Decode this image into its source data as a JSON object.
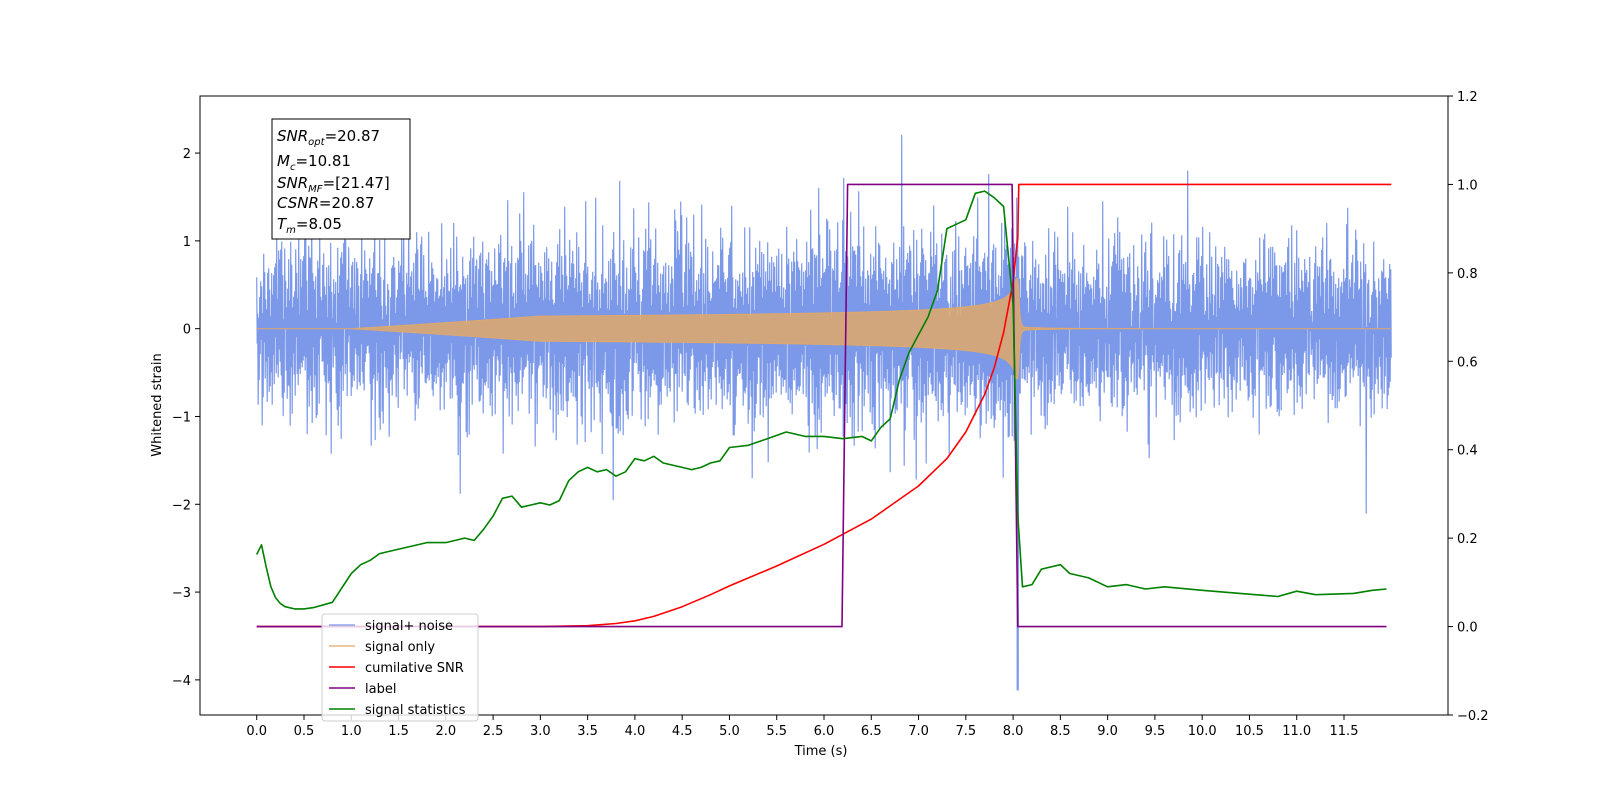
{
  "chart_data": {
    "type": "line",
    "title": "",
    "xlabel": "Time (s)",
    "ylabel": "Whitened strain",
    "y2label": "",
    "xlim": [
      -0.6,
      12.6
    ],
    "ylim": [
      -4.4,
      2.65
    ],
    "y2lim": [
      -0.2,
      1.2
    ],
    "x_ticks": [
      0.0,
      0.5,
      1.0,
      1.5,
      2.0,
      2.5,
      3.0,
      3.5,
      4.0,
      4.5,
      5.0,
      5.5,
      6.0,
      6.5,
      7.0,
      7.5,
      8.0,
      8.5,
      9.0,
      9.5,
      10.0,
      10.5,
      11.0,
      11.5
    ],
    "x_tick_labels": [
      "0.0",
      "0.5",
      "1.0",
      "1.5",
      "2.0",
      "2.5",
      "3.0",
      "3.5",
      "4.0",
      "4.5",
      "5.0",
      "5.5",
      "6.0",
      "6.5",
      "7.0",
      "7.5",
      "8.0",
      "8.5",
      "9.0",
      "9.5",
      "10.0",
      "10.5",
      "11.0",
      "11.5"
    ],
    "y_ticks": [
      2,
      1,
      0,
      -1,
      -2,
      -3,
      -4
    ],
    "y_tick_labels": [
      "2",
      "1",
      "0",
      "−1",
      "−2",
      "−3",
      "−4"
    ],
    "y2_ticks": [
      1.2,
      1.0,
      0.8,
      0.6,
      0.4,
      0.2,
      0.0,
      -0.2
    ],
    "y2_tick_labels": [
      "1.2",
      "1.0",
      "0.8",
      "0.6",
      "0.4",
      "0.2",
      "0.0",
      "−0.2"
    ],
    "grid": false,
    "legend_position": "lower-left",
    "annotation": {
      "snr_opt": {
        "sym": "SNR",
        "sub": "opt",
        "value": "=20.87"
      },
      "mc": {
        "sym": "M",
        "sub": "c",
        "value": "=10.81"
      },
      "snr_mf": {
        "sym": "SNR",
        "sub": "MF",
        "value": "=[21.47]"
      },
      "csnr": {
        "sym": "CSNR",
        "sub": "",
        "value": "=20.87"
      },
      "tm": {
        "sym": "T",
        "sub": "m",
        "value": "=8.05"
      }
    },
    "series": [
      {
        "name": "signal+ noise",
        "axis": "left",
        "color": "#7593e8",
        "description_values": {
          "x_start": 0.0,
          "x_end": 12.0,
          "noise_rms": 0.42,
          "max": 2.32,
          "min": -4.12,
          "min_at_x": 8.04
        }
      },
      {
        "name": "signal only",
        "axis": "left",
        "color": "#e0a86a",
        "description_values": {
          "x_start": 0.0,
          "x_end": 12.0,
          "merger_x": 8.05,
          "peak_amplitude": 0.95,
          "amplitude_at_6": 0.12,
          "amplitude_at_7": 0.22
        }
      },
      {
        "name": "cumilative SNR",
        "axis": "right",
        "color": "#ff0000",
        "x": [
          0.0,
          1.0,
          2.0,
          3.0,
          3.5,
          3.8,
          4.0,
          4.2,
          4.5,
          4.8,
          5.0,
          5.5,
          6.0,
          6.5,
          7.0,
          7.3,
          7.5,
          7.7,
          7.8,
          7.9,
          8.0,
          8.03,
          8.05,
          8.06,
          12.0
        ],
        "values": [
          0.0,
          0.0,
          0.0,
          0.0,
          0.002,
          0.007,
          0.013,
          0.023,
          0.045,
          0.072,
          0.092,
          0.137,
          0.186,
          0.243,
          0.318,
          0.38,
          0.44,
          0.525,
          0.585,
          0.665,
          0.78,
          0.84,
          0.88,
          1.0,
          1.0
        ]
      },
      {
        "name": "label",
        "axis": "right",
        "color": "#800080",
        "x": [
          0.0,
          6.19,
          6.25,
          7.99,
          8.05,
          11.95
        ],
        "values": [
          0.0,
          0.0,
          1.0,
          1.0,
          0.0,
          0.0
        ]
      },
      {
        "name": "signal statistics",
        "axis": "right",
        "color": "#008000",
        "x": [
          0.0,
          0.05,
          0.1,
          0.15,
          0.2,
          0.25,
          0.3,
          0.4,
          0.5,
          0.6,
          0.8,
          1.0,
          1.1,
          1.2,
          1.3,
          1.4,
          1.6,
          1.8,
          2.0,
          2.2,
          2.3,
          2.4,
          2.5,
          2.6,
          2.7,
          2.8,
          2.9,
          3.0,
          3.1,
          3.2,
          3.3,
          3.4,
          3.5,
          3.6,
          3.7,
          3.8,
          3.9,
          4.0,
          4.1,
          4.2,
          4.3,
          4.5,
          4.6,
          4.7,
          4.8,
          4.9,
          5.0,
          5.2,
          5.4,
          5.6,
          5.8,
          6.0,
          6.2,
          6.4,
          6.5,
          6.6,
          6.7,
          6.8,
          6.9,
          7.0,
          7.1,
          7.2,
          7.3,
          7.4,
          7.5,
          7.6,
          7.7,
          7.8,
          7.9,
          8.0,
          8.05,
          8.1,
          8.2,
          8.3,
          8.5,
          8.6,
          8.8,
          9.0,
          9.2,
          9.4,
          9.6,
          10.0,
          10.4,
          10.8,
          11.0,
          11.2,
          11.6,
          11.8,
          11.95
        ],
        "values": [
          0.163,
          0.185,
          0.135,
          0.09,
          0.065,
          0.052,
          0.045,
          0.04,
          0.04,
          0.043,
          0.055,
          0.12,
          0.14,
          0.15,
          0.165,
          0.17,
          0.18,
          0.19,
          0.19,
          0.2,
          0.195,
          0.22,
          0.25,
          0.29,
          0.295,
          0.27,
          0.275,
          0.28,
          0.275,
          0.285,
          0.33,
          0.35,
          0.36,
          0.35,
          0.355,
          0.34,
          0.35,
          0.38,
          0.375,
          0.385,
          0.37,
          0.36,
          0.355,
          0.36,
          0.37,
          0.375,
          0.405,
          0.41,
          0.425,
          0.44,
          0.43,
          0.43,
          0.425,
          0.43,
          0.42,
          0.45,
          0.47,
          0.56,
          0.62,
          0.66,
          0.7,
          0.76,
          0.9,
          0.91,
          0.92,
          0.98,
          0.985,
          0.97,
          0.95,
          0.73,
          0.25,
          0.09,
          0.095,
          0.13,
          0.14,
          0.12,
          0.11,
          0.09,
          0.095,
          0.085,
          0.09,
          0.082,
          0.075,
          0.068,
          0.08,
          0.072,
          0.075,
          0.082,
          0.085
        ]
      }
    ]
  }
}
